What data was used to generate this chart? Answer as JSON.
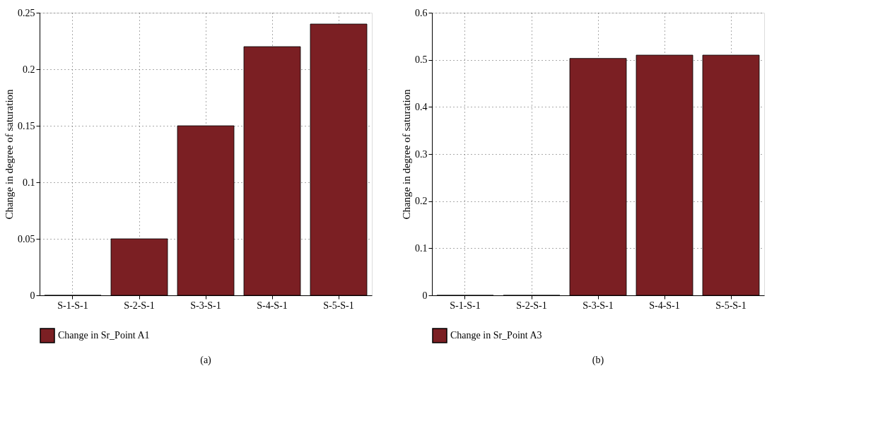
{
  "chart_data": [
    {
      "type": "bar",
      "categories": [
        "S-1-S-1",
        "S-2-S-1",
        "S-3-S-1",
        "S-4-S-1",
        "S-5-S-1"
      ],
      "ylabel": "Change in degree of saturation",
      "series": [
        {
          "name": "Change in Sr_Point A1",
          "color": "#7b1f23",
          "values": [
            0,
            0.05,
            0.15,
            0.22,
            0.24
          ]
        }
      ],
      "ylim": [
        0,
        0.25
      ],
      "yticks": [
        0,
        0.05,
        0.1,
        0.15,
        0.2,
        0.25
      ],
      "grid": true,
      "legend": "bottom left",
      "annotations": [
        "(a)"
      ]
    },
    {
      "type": "bar",
      "categories": [
        "S-1-S-1",
        "S-2-S-1",
        "S-3-S-1",
        "S-4-S-1",
        "S-5-S-1"
      ],
      "ylabel": "Change in degree of saturation",
      "series": [
        {
          "name": "Change in Sr_Point A3",
          "color": "#7b1f23",
          "values": [
            0,
            0,
            0.503,
            0.51,
            0.51
          ]
        }
      ],
      "ylim": [
        0,
        0.6
      ],
      "yticks": [
        0,
        0.1,
        0.2,
        0.3,
        0.4,
        0.5,
        0.6
      ],
      "grid": true,
      "legend": "bottom left",
      "annotations": [
        "(b)"
      ]
    }
  ]
}
